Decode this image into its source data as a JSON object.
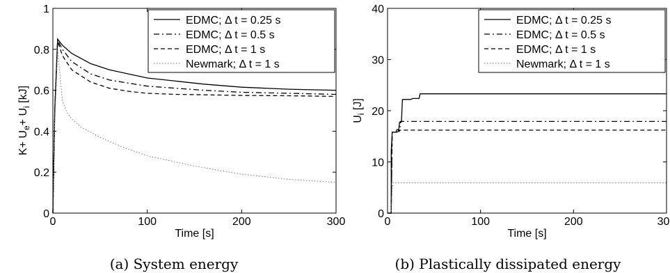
{
  "chart_data": [
    {
      "type": "line",
      "caption": "(a) System energy",
      "xlabel": "Time [s]",
      "ylabel": {
        "base": "K+ U",
        "sub1": "e",
        "mid": "+ U",
        "sub2": "i",
        "unit": " [kJ]"
      },
      "xlim": [
        0,
        300
      ],
      "ylim": [
        0,
        1
      ],
      "xticks": [
        "0",
        "100",
        "200",
        "300"
      ],
      "yticks": [
        "0",
        "0.2",
        "0.4",
        "0.6",
        "0.8",
        "1"
      ],
      "xtick_values": [
        0,
        100,
        200,
        300
      ],
      "ytick_values": [
        0,
        0.2,
        0.4,
        0.6,
        0.8,
        1
      ],
      "legend_position": "top-right",
      "series": [
        {
          "name": "EDMC; Δ  t = 0.25 s",
          "style": "solid",
          "x": [
            0,
            2,
            5,
            10,
            20,
            40,
            60,
            80,
            100,
            130,
            160,
            200,
            250,
            300
          ],
          "y": [
            0,
            0.5,
            0.85,
            0.82,
            0.78,
            0.73,
            0.7,
            0.68,
            0.66,
            0.645,
            0.63,
            0.615,
            0.605,
            0.6
          ]
        },
        {
          "name": "EDMC; Δ  t = 0.5 s",
          "style": "dashdot",
          "x": [
            0,
            2,
            5,
            10,
            20,
            40,
            60,
            80,
            100,
            130,
            160,
            200,
            250,
            300
          ],
          "y": [
            0,
            0.5,
            0.845,
            0.8,
            0.74,
            0.68,
            0.65,
            0.635,
            0.62,
            0.61,
            0.6,
            0.59,
            0.585,
            0.58
          ]
        },
        {
          "name": "EDMC; Δ  t = 1 s",
          "style": "dashed",
          "x": [
            0,
            2,
            5,
            10,
            20,
            40,
            60,
            80,
            100,
            130,
            160,
            200,
            250,
            300
          ],
          "y": [
            0,
            0.5,
            0.84,
            0.77,
            0.7,
            0.64,
            0.61,
            0.595,
            0.585,
            0.58,
            0.578,
            0.575,
            0.573,
            0.57
          ]
        },
        {
          "name": "Newmark; Δ  t = 1 s",
          "style": "dotted",
          "x": [
            0,
            2,
            5,
            8,
            10,
            15,
            20,
            30,
            50,
            75,
            100,
            150,
            200,
            250,
            300
          ],
          "y": [
            0,
            0.45,
            0.8,
            0.65,
            0.55,
            0.49,
            0.46,
            0.42,
            0.37,
            0.32,
            0.28,
            0.23,
            0.19,
            0.165,
            0.15
          ]
        }
      ]
    },
    {
      "type": "line",
      "caption": "(b) Plastically dissipated energy",
      "xlabel": "Time [s]",
      "ylabel": {
        "base": "U",
        "sub1": "i",
        "mid": "",
        "sub2": "",
        "unit": " [J]"
      },
      "xlim": [
        0,
        300
      ],
      "ylim": [
        0,
        40
      ],
      "xticks": [
        "0",
        "100",
        "200",
        "300"
      ],
      "yticks": [
        "0",
        "10",
        "20",
        "30",
        "40"
      ],
      "xtick_values": [
        0,
        100,
        200,
        300
      ],
      "ytick_values": [
        0,
        10,
        20,
        30,
        40
      ],
      "legend_position": "top-right",
      "series": [
        {
          "name": "EDMC; Δ  t = 0.25 s",
          "style": "solid",
          "x": [
            0,
            4,
            4,
            5,
            6,
            9,
            10,
            12,
            13,
            15,
            16,
            25,
            27,
            34,
            35,
            300
          ],
          "y": [
            0,
            0,
            12,
            15.8,
            15.8,
            15.8,
            16.3,
            16.3,
            17.8,
            17.8,
            22.2,
            22.2,
            22.4,
            22.4,
            23.3,
            23.3
          ]
        },
        {
          "name": "EDMC; Δ  t = 0.5 s",
          "style": "dashdot",
          "x": [
            0,
            4,
            5,
            10,
            12,
            13,
            14,
            300
          ],
          "y": [
            0,
            0,
            15.8,
            15.8,
            16.0,
            16.0,
            17.9,
            17.9
          ]
        },
        {
          "name": "EDMC; Δ  t = 1 s",
          "style": "dashed",
          "x": [
            0,
            4,
            5,
            11,
            12,
            300
          ],
          "y": [
            0,
            0,
            15.8,
            15.8,
            16.2,
            16.2
          ]
        },
        {
          "name": "Newmark; Δ  t = 1 s",
          "style": "dotted",
          "x": [
            0,
            4,
            5,
            6,
            300
          ],
          "y": [
            0,
            0,
            5,
            5.9,
            5.9
          ]
        }
      ]
    }
  ]
}
